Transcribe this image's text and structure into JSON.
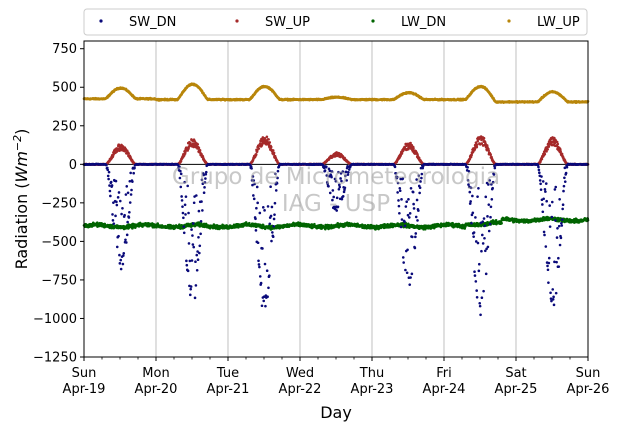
{
  "chart_data": {
    "type": "scatter",
    "xlabel": "Day",
    "ylabel_prefix": "Radiation (",
    "ylabel_unit": "Wm",
    "ylabel_exp": "−2",
    "ylabel_suffix": ")",
    "ylim": [
      -1250,
      800
    ],
    "yticks": [
      750,
      500,
      250,
      0,
      -250,
      -500,
      -750,
      -1000,
      -1250
    ],
    "ytick_labels": [
      "750",
      "500",
      "250",
      "0",
      "−250",
      "−500",
      "−750",
      "−1000",
      "−1250"
    ],
    "x_range_days": [
      "Sun Apr-19",
      "Sun Apr-26"
    ],
    "xticks": [
      {
        "day": "Sun",
        "date": "Apr-19"
      },
      {
        "day": "Mon",
        "date": "Apr-20"
      },
      {
        "day": "Tue",
        "date": "Apr-21"
      },
      {
        "day": "Wed",
        "date": "Apr-22"
      },
      {
        "day": "Thu",
        "date": "Apr-23"
      },
      {
        "day": "Fri",
        "date": "Apr-24"
      },
      {
        "day": "Sat",
        "date": "Apr-25"
      },
      {
        "day": "Sun",
        "date": "Apr-26"
      }
    ],
    "grid": "vertical at day boundaries",
    "zero_line": true,
    "legend_position": "top, above plot, 4 columns",
    "series": [
      {
        "name": "SW_DN",
        "color": "#0a0a7a",
        "daily_peak_values": [
          -650,
          -880,
          -940,
          -300,
          -780,
          -960,
          -900
        ]
      },
      {
        "name": "SW_UP",
        "color": "#a52a2a",
        "daily_peak_values": [
          120,
          150,
          170,
          70,
          130,
          170,
          160
        ]
      },
      {
        "name": "LW_DN",
        "color": "#006400",
        "typical_value": -400
      },
      {
        "name": "LW_UP",
        "color": "#b8860b",
        "night_value": 420,
        "daily_peak_values": [
          495,
          520,
          505,
          435,
          465,
          505,
          470
        ]
      }
    ],
    "watermark_line1": "Grupo de Micrometeorologia",
    "watermark_line2": "IAG - USP"
  }
}
